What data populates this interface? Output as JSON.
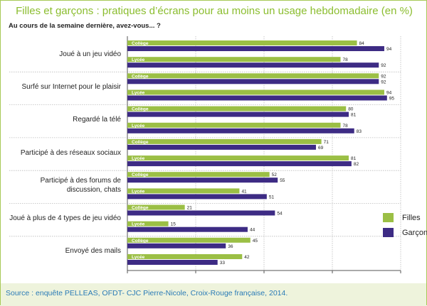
{
  "title": "Filles et garçons : pratiques d’écrans pour au moins un usage hebdomadaire (en %)",
  "subtitle": "Au cours de la semaine dernière, avez-vous... ?",
  "source": "Source : enquête PELLEAS, OFDT- CJC Pierre-Nicole, Croix-Rouge française, 2014.",
  "colors": {
    "filles": "#9bbf45",
    "garcons": "#3d2b84",
    "grid": "#bbbbbb",
    "accent": "#8bbd2f"
  },
  "legend": {
    "filles": "Filles",
    "garcons": "Garçons"
  },
  "chart_data": {
    "type": "bar",
    "orientation": "horizontal",
    "title": "Filles et garçons : pratiques d’écrans pour au moins un usage hebdomadaire (en %)",
    "subtitle": "Au cours de la semaine dernière, avez-vous... ?",
    "xlim": [
      0,
      100
    ],
    "grid": true,
    "legend_position": "right",
    "subgroups": [
      "Collège",
      "Lycée"
    ],
    "series_names": [
      "Filles",
      "Garçons"
    ],
    "categories": [
      {
        "label": "Joué à un jeu vidéo",
        "groups": [
          {
            "name": "Collège",
            "filles": 84,
            "garcons": 94
          },
          {
            "name": "Lycée",
            "filles": 78,
            "garcons": 92
          }
        ]
      },
      {
        "label": "Surfé sur Internet pour le plaisir",
        "groups": [
          {
            "name": "Collège",
            "filles": 92,
            "garcons": 92
          },
          {
            "name": "Lycée",
            "filles": 94,
            "garcons": 95
          }
        ]
      },
      {
        "label": "Regardé la télé",
        "groups": [
          {
            "name": "Collège",
            "filles": 80,
            "garcons": 81
          },
          {
            "name": "Lycée",
            "filles": 78,
            "garcons": 83
          }
        ]
      },
      {
        "label": "Participé à des réseaux sociaux",
        "groups": [
          {
            "name": "Collège",
            "filles": 71,
            "garcons": 69
          },
          {
            "name": "Lycée",
            "filles": 81,
            "garcons": 82
          }
        ]
      },
      {
        "label": "Participé à des forums de discussion, chats",
        "groups": [
          {
            "name": "Collège",
            "filles": 52,
            "garcons": 55
          },
          {
            "name": "Lycée",
            "filles": 41,
            "garcons": 51
          }
        ]
      },
      {
        "label": "Joué à plus de 4 types de jeu vidéo",
        "groups": [
          {
            "name": "Collège",
            "filles": 21,
            "garcons": 54
          },
          {
            "name": "Lycée",
            "filles": 15,
            "garcons": 44
          }
        ]
      },
      {
        "label": "Envoyé des mails",
        "groups": [
          {
            "name": "Collège",
            "filles": 45,
            "garcons": 36
          },
          {
            "name": "Lycée",
            "filles": 42,
            "garcons": 33
          }
        ]
      }
    ]
  }
}
